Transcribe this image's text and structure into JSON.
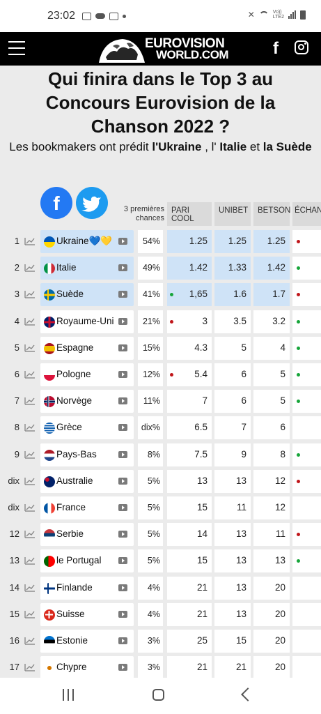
{
  "status_bar": {
    "time": "23:02",
    "network": "Vo))\nLTE2"
  },
  "header": {
    "logo_line1": "EUROVISION",
    "logo_line2": "WORLD.COM",
    "facebook_glyph": "f"
  },
  "title": "Qui finira dans le Top 3 au Concours Eurovision de la Chanson 2022 ?",
  "subtitle": {
    "prefix": "Les bookmakers ont prédit ",
    "first": "l'Ukraine",
    "sep1": " , l' ",
    "second": "Italie",
    "sep2": " et ",
    "third": "la Suède"
  },
  "share": {
    "facebook_glyph": "f"
  },
  "table": {
    "chances_header": "3 premières chances",
    "columns": [
      "PARI COOL",
      "UNIBET",
      "BETSON",
      "ÉCHAN"
    ],
    "rows": [
      {
        "rank": "1",
        "country": "Ukraine",
        "emoji": "💙💛",
        "chance": "54%",
        "odds": [
          "1.25",
          "1.25",
          "1.25"
        ],
        "marker1": "",
        "marker4": "red",
        "top": true
      },
      {
        "rank": "2",
        "country": "Italie",
        "emoji": "",
        "chance": "49%",
        "odds": [
          "1.42",
          "1.33",
          "1.42"
        ],
        "marker1": "",
        "marker4": "green",
        "top": true
      },
      {
        "rank": "3",
        "country": "Suède",
        "emoji": "",
        "chance": "41%",
        "odds": [
          "1,65",
          "1.6",
          "1.7"
        ],
        "marker1": "green",
        "marker4": "red",
        "top": true
      },
      {
        "rank": "4",
        "country": "Royaume-Uni",
        "emoji": "",
        "chance": "21%",
        "odds": [
          "3",
          "3.5",
          "3.2"
        ],
        "marker1": "red",
        "marker4": "green",
        "top": false
      },
      {
        "rank": "5",
        "country": "Espagne",
        "emoji": "",
        "chance": "15%",
        "odds": [
          "4.3",
          "5",
          "4"
        ],
        "marker1": "",
        "marker4": "green",
        "top": false
      },
      {
        "rank": "6",
        "country": "Pologne",
        "emoji": "",
        "chance": "12%",
        "odds": [
          "5.4",
          "6",
          "5"
        ],
        "marker1": "red",
        "marker4": "green",
        "top": false
      },
      {
        "rank": "7",
        "country": "Norvège",
        "emoji": "",
        "chance": "11%",
        "odds": [
          "7",
          "6",
          "5"
        ],
        "marker1": "",
        "marker4": "green",
        "top": false
      },
      {
        "rank": "8",
        "country": "Grèce",
        "emoji": "",
        "chance": "dix%",
        "odds": [
          "6.5",
          "7",
          "6"
        ],
        "marker1": "",
        "marker4": "",
        "top": false
      },
      {
        "rank": "9",
        "country": "Pays-Bas",
        "emoji": "",
        "chance": "8%",
        "odds": [
          "7.5",
          "9",
          "8"
        ],
        "marker1": "",
        "marker4": "green",
        "top": false
      },
      {
        "rank": "dix",
        "country": "Australie",
        "emoji": "",
        "chance": "5%",
        "odds": [
          "13",
          "13",
          "12"
        ],
        "marker1": "",
        "marker4": "red",
        "top": false
      },
      {
        "rank": "dix",
        "country": "France",
        "emoji": "",
        "chance": "5%",
        "odds": [
          "15",
          "11",
          "12"
        ],
        "marker1": "",
        "marker4": "",
        "top": false
      },
      {
        "rank": "12",
        "country": "Serbie",
        "emoji": "",
        "chance": "5%",
        "odds": [
          "14",
          "13",
          "11"
        ],
        "marker1": "",
        "marker4": "red",
        "top": false
      },
      {
        "rank": "13",
        "country": "le Portugal",
        "emoji": "",
        "chance": "5%",
        "odds": [
          "15",
          "13",
          "13"
        ],
        "marker1": "",
        "marker4": "green",
        "top": false
      },
      {
        "rank": "14",
        "country": "Finlande",
        "emoji": "",
        "chance": "4%",
        "odds": [
          "21",
          "13",
          "20"
        ],
        "marker1": "",
        "marker4": "",
        "top": false
      },
      {
        "rank": "15",
        "country": "Suisse",
        "emoji": "",
        "chance": "4%",
        "odds": [
          "21",
          "13",
          "20"
        ],
        "marker1": "",
        "marker4": "",
        "top": false
      },
      {
        "rank": "16",
        "country": "Estonie",
        "emoji": "",
        "chance": "3%",
        "odds": [
          "25",
          "15",
          "20"
        ],
        "marker1": "",
        "marker4": "",
        "top": false
      },
      {
        "rank": "17",
        "country": "Chypre",
        "emoji": "",
        "chance": "3%",
        "odds": [
          "21",
          "21",
          "20"
        ],
        "marker1": "",
        "marker4": "",
        "top": false
      }
    ]
  },
  "colors": {
    "header_bg": "#000000",
    "top3_bg": "#cfe3f7",
    "page_bg": "#ebebeb",
    "marker_red": "#c0161a",
    "marker_green": "#17a53a"
  }
}
